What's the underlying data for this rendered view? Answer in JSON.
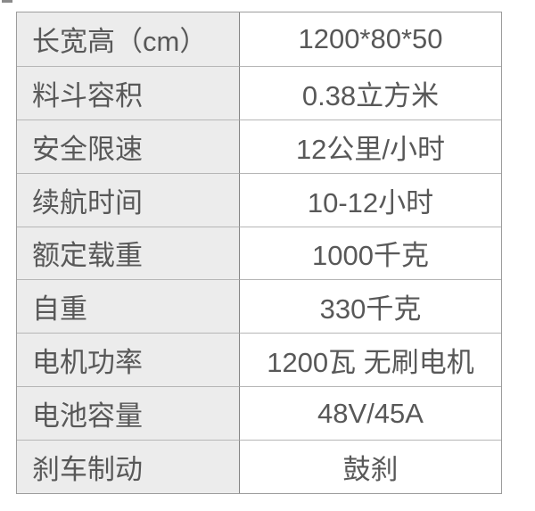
{
  "table": {
    "title": "product-specification-table",
    "columns": [
      "spec_name",
      "spec_value"
    ],
    "rows": [
      {
        "label": "长宽高（cm）",
        "value": "1200*80*50"
      },
      {
        "label": "料斗容积",
        "value": "0.38立方米"
      },
      {
        "label": "安全限速",
        "value": "12公里/小时"
      },
      {
        "label": "续航时间",
        "value": "10-12小时"
      },
      {
        "label": "额定载重",
        "value": "1000千克"
      },
      {
        "label": "自重",
        "value": "330千克"
      },
      {
        "label": "电机功率",
        "value": "1200瓦 无刷电机"
      },
      {
        "label": "电池容量",
        "value": "48V/45A"
      },
      {
        "label": "刹车制动",
        "value": "鼓刹"
      }
    ],
    "colors": {
      "label_bg": "#ececec",
      "value_bg": "#ffffff",
      "outer_border": "#9c9c9c",
      "row_border": "#b6b6b6",
      "column_border": "#868686",
      "text": "#585858"
    }
  }
}
